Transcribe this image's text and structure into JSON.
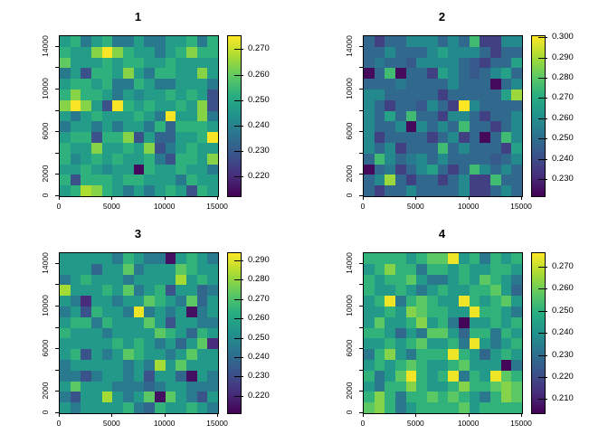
{
  "figure": {
    "background": "#ffffff",
    "foreground": "#000000"
  },
  "colormap": {
    "name": "viridis",
    "stops": [
      "#440154",
      "#472d7b",
      "#3b528b",
      "#2c728e",
      "#21918c",
      "#27ad81",
      "#5ec962",
      "#aadc32",
      "#fde725"
    ]
  },
  "chart_data": [
    {
      "type": "heatmap",
      "title": "1",
      "xlim": [
        0,
        15000
      ],
      "ylim": [
        0,
        15000
      ],
      "x_ticks": [
        0,
        5000,
        10000,
        15000
      ],
      "y_ticks": [
        0,
        2000,
        4000,
        6000,
        8000,
        10000,
        12000,
        14000
      ],
      "y_tick_labels": [
        0,
        2000,
        6000,
        10000,
        14000
      ],
      "zlim": [
        0.2125,
        0.2755
      ],
      "colorbar_ticks": [
        0.22,
        0.23,
        0.24,
        0.25,
        0.26,
        0.27
      ],
      "grid_shape": [
        15,
        15
      ],
      "row_order": "top_to_bottom",
      "values": [
        [
          0.247,
          0.253,
          0.238,
          0.247,
          0.253,
          0.238,
          0.238,
          0.247,
          0.238,
          0.238,
          0.247,
          0.247,
          0.253,
          0.238,
          0.253
        ],
        [
          0.253,
          0.247,
          0.247,
          0.264,
          0.275,
          0.264,
          0.253,
          0.247,
          0.247,
          0.238,
          0.247,
          0.253,
          0.264,
          0.253,
          0.253
        ],
        [
          0.26,
          0.247,
          0.247,
          0.247,
          0.253,
          0.247,
          0.253,
          0.253,
          0.247,
          0.247,
          0.253,
          0.247,
          0.247,
          0.247,
          0.247
        ],
        [
          0.238,
          0.247,
          0.228,
          0.253,
          0.253,
          0.247,
          0.264,
          0.247,
          0.238,
          0.253,
          0.253,
          0.247,
          0.247,
          0.264,
          0.247
        ],
        [
          0.247,
          0.253,
          0.253,
          0.247,
          0.253,
          0.238,
          0.238,
          0.253,
          0.247,
          0.238,
          0.238,
          0.247,
          0.247,
          0.247,
          0.238
        ],
        [
          0.253,
          0.264,
          0.253,
          0.253,
          0.247,
          0.238,
          0.247,
          0.242,
          0.247,
          0.247,
          0.253,
          0.247,
          0.253,
          0.247,
          0.228
        ],
        [
          0.264,
          0.275,
          0.264,
          0.247,
          0.228,
          0.275,
          0.253,
          0.247,
          0.253,
          0.247,
          0.247,
          0.253,
          0.247,
          0.264,
          0.228
        ],
        [
          0.247,
          0.238,
          0.247,
          0.253,
          0.247,
          0.247,
          0.247,
          0.253,
          0.247,
          0.238,
          0.275,
          0.247,
          0.247,
          0.264,
          0.238
        ],
        [
          0.238,
          0.247,
          0.247,
          0.238,
          0.247,
          0.238,
          0.247,
          0.247,
          0.238,
          0.253,
          0.233,
          0.253,
          0.253,
          0.253,
          0.247
        ],
        [
          0.247,
          0.253,
          0.253,
          0.228,
          0.253,
          0.253,
          0.264,
          0.228,
          0.247,
          0.233,
          0.233,
          0.247,
          0.247,
          0.253,
          0.275
        ],
        [
          0.253,
          0.247,
          0.247,
          0.264,
          0.247,
          0.247,
          0.253,
          0.247,
          0.264,
          0.228,
          0.238,
          0.247,
          0.253,
          0.247,
          0.247
        ],
        [
          0.253,
          0.242,
          0.247,
          0.253,
          0.247,
          0.253,
          0.247,
          0.247,
          0.253,
          0.238,
          0.228,
          0.253,
          0.253,
          0.247,
          0.264
        ],
        [
          0.247,
          0.247,
          0.253,
          0.247,
          0.242,
          0.247,
          0.247,
          0.214,
          0.253,
          0.247,
          0.247,
          0.253,
          0.247,
          0.247,
          0.238
        ],
        [
          0.253,
          0.228,
          0.253,
          0.253,
          0.253,
          0.247,
          0.253,
          0.253,
          0.247,
          0.247,
          0.247,
          0.238,
          0.253,
          0.247,
          0.247
        ],
        [
          0.247,
          0.253,
          0.268,
          0.264,
          0.253,
          0.247,
          0.238,
          0.247,
          0.238,
          0.247,
          0.253,
          0.247,
          0.228,
          0.253,
          0.247
        ]
      ]
    },
    {
      "type": "heatmap",
      "title": "2",
      "xlim": [
        0,
        15000
      ],
      "ylim": [
        0,
        15000
      ],
      "x_ticks": [
        0,
        5000,
        10000,
        15000
      ],
      "y_ticks": [
        0,
        2000,
        4000,
        6000,
        8000,
        10000,
        12000,
        14000
      ],
      "y_tick_labels": [
        0,
        2000,
        6000,
        10000,
        14000
      ],
      "zlim": [
        0.222,
        0.301
      ],
      "colorbar_ticks": [
        0.23,
        0.24,
        0.25,
        0.26,
        0.27,
        0.28,
        0.29,
        0.3
      ],
      "grid_shape": [
        15,
        15
      ],
      "row_order": "top_to_bottom",
      "values": [
        [
          0.249,
          0.237,
          0.249,
          0.249,
          0.259,
          0.259,
          0.259,
          0.249,
          0.259,
          0.249,
          0.276,
          0.237,
          0.237,
          0.259,
          0.259
        ],
        [
          0.249,
          0.249,
          0.259,
          0.249,
          0.249,
          0.249,
          0.259,
          0.267,
          0.259,
          0.259,
          0.259,
          0.249,
          0.237,
          0.249,
          0.249
        ],
        [
          0.249,
          0.254,
          0.249,
          0.249,
          0.244,
          0.259,
          0.259,
          0.259,
          0.259,
          0.249,
          0.244,
          0.237,
          0.249,
          0.249,
          0.267
        ],
        [
          0.224,
          0.249,
          0.276,
          0.224,
          0.249,
          0.249,
          0.237,
          0.267,
          0.259,
          0.249,
          0.244,
          0.249,
          0.259,
          0.267,
          0.249
        ],
        [
          0.249,
          0.249,
          0.249,
          0.254,
          0.249,
          0.249,
          0.249,
          0.249,
          0.259,
          0.249,
          0.249,
          0.249,
          0.224,
          0.249,
          0.259
        ],
        [
          0.259,
          0.259,
          0.249,
          0.249,
          0.249,
          0.249,
          0.249,
          0.237,
          0.249,
          0.249,
          0.249,
          0.249,
          0.249,
          0.267,
          0.289
        ],
        [
          0.259,
          0.249,
          0.237,
          0.249,
          0.249,
          0.244,
          0.259,
          0.249,
          0.237,
          0.301,
          0.259,
          0.249,
          0.249,
          0.249,
          0.249
        ],
        [
          0.259,
          0.249,
          0.267,
          0.249,
          0.276,
          0.249,
          0.249,
          0.237,
          0.259,
          0.259,
          0.249,
          0.237,
          0.249,
          0.249,
          0.259
        ],
        [
          0.259,
          0.249,
          0.249,
          0.259,
          0.224,
          0.259,
          0.249,
          0.259,
          0.249,
          0.276,
          0.249,
          0.249,
          0.237,
          0.249,
          0.259
        ],
        [
          0.259,
          0.237,
          0.249,
          0.249,
          0.249,
          0.249,
          0.237,
          0.249,
          0.259,
          0.237,
          0.249,
          0.224,
          0.249,
          0.276,
          0.259
        ],
        [
          0.259,
          0.249,
          0.259,
          0.237,
          0.249,
          0.249,
          0.249,
          0.276,
          0.249,
          0.259,
          0.249,
          0.249,
          0.249,
          0.237,
          0.267
        ],
        [
          0.249,
          0.276,
          0.259,
          0.249,
          0.254,
          0.259,
          0.249,
          0.259,
          0.249,
          0.249,
          0.249,
          0.249,
          0.244,
          0.249,
          0.259
        ],
        [
          0.224,
          0.249,
          0.254,
          0.237,
          0.249,
          0.259,
          0.267,
          0.249,
          0.237,
          0.249,
          0.276,
          0.259,
          0.249,
          0.259,
          0.249
        ],
        [
          0.249,
          0.259,
          0.289,
          0.249,
          0.237,
          0.249,
          0.249,
          0.237,
          0.249,
          0.259,
          0.237,
          0.237,
          0.276,
          0.249,
          0.249
        ],
        [
          0.249,
          0.237,
          0.249,
          0.249,
          0.259,
          0.249,
          0.249,
          0.249,
          0.249,
          0.259,
          0.237,
          0.237,
          0.249,
          0.259,
          0.249
        ]
      ]
    },
    {
      "type": "heatmap",
      "title": "3",
      "xlim": [
        0,
        15000
      ],
      "ylim": [
        0,
        15000
      ],
      "x_ticks": [
        0,
        5000,
        10000,
        15000
      ],
      "y_ticks": [
        0,
        2000,
        4000,
        6000,
        8000,
        10000,
        12000,
        14000
      ],
      "y_tick_labels": [
        0,
        2000,
        6000,
        10000,
        14000
      ],
      "zlim": [
        0.2116,
        0.294
      ],
      "colorbar_ticks": [
        0.22,
        0.23,
        0.24,
        0.25,
        0.26,
        0.27,
        0.28,
        0.29
      ],
      "grid_shape": [
        15,
        15
      ],
      "row_order": "top_to_bottom",
      "values": [
        [
          0.256,
          0.256,
          0.256,
          0.256,
          0.256,
          0.245,
          0.265,
          0.256,
          0.245,
          0.245,
          0.215,
          0.256,
          0.265,
          0.256,
          0.245
        ],
        [
          0.256,
          0.256,
          0.256,
          0.239,
          0.256,
          0.256,
          0.273,
          0.245,
          0.256,
          0.256,
          0.256,
          0.273,
          0.265,
          0.256,
          0.256
        ],
        [
          0.245,
          0.256,
          0.265,
          0.256,
          0.256,
          0.256,
          0.245,
          0.256,
          0.256,
          0.256,
          0.256,
          0.283,
          0.256,
          0.265,
          0.256
        ],
        [
          0.283,
          0.256,
          0.256,
          0.256,
          0.265,
          0.256,
          0.273,
          0.245,
          0.256,
          0.265,
          0.233,
          0.256,
          0.256,
          0.239,
          0.245
        ],
        [
          0.256,
          0.245,
          0.222,
          0.256,
          0.256,
          0.245,
          0.256,
          0.256,
          0.273,
          0.265,
          0.256,
          0.245,
          0.273,
          0.239,
          0.256
        ],
        [
          0.245,
          0.256,
          0.233,
          0.265,
          0.256,
          0.256,
          0.245,
          0.292,
          0.245,
          0.256,
          0.245,
          0.256,
          0.215,
          0.245,
          0.256
        ],
        [
          0.256,
          0.265,
          0.265,
          0.245,
          0.265,
          0.256,
          0.256,
          0.256,
          0.273,
          0.256,
          0.233,
          0.256,
          0.256,
          0.245,
          0.245
        ],
        [
          0.265,
          0.256,
          0.256,
          0.256,
          0.245,
          0.256,
          0.256,
          0.256,
          0.256,
          0.273,
          0.265,
          0.256,
          0.239,
          0.265,
          0.256
        ],
        [
          0.256,
          0.256,
          0.256,
          0.256,
          0.256,
          0.265,
          0.256,
          0.265,
          0.256,
          0.245,
          0.256,
          0.239,
          0.256,
          0.273,
          0.222
        ],
        [
          0.256,
          0.265,
          0.233,
          0.256,
          0.245,
          0.256,
          0.273,
          0.265,
          0.256,
          0.256,
          0.245,
          0.256,
          0.273,
          0.256,
          0.256
        ],
        [
          0.245,
          0.256,
          0.256,
          0.256,
          0.256,
          0.256,
          0.245,
          0.256,
          0.245,
          0.283,
          0.256,
          0.273,
          0.256,
          0.256,
          0.256
        ],
        [
          0.245,
          0.245,
          0.233,
          0.245,
          0.256,
          0.256,
          0.245,
          0.256,
          0.233,
          0.256,
          0.256,
          0.239,
          0.215,
          0.256,
          0.245
        ],
        [
          0.256,
          0.273,
          0.256,
          0.256,
          0.256,
          0.245,
          0.245,
          0.245,
          0.239,
          0.245,
          0.256,
          0.256,
          0.245,
          0.245,
          0.245
        ],
        [
          0.245,
          0.233,
          0.256,
          0.256,
          0.283,
          0.256,
          0.245,
          0.256,
          0.273,
          0.215,
          0.273,
          0.256,
          0.245,
          0.233,
          0.256
        ],
        [
          0.256,
          0.245,
          0.256,
          0.256,
          0.256,
          0.256,
          0.265,
          0.245,
          0.239,
          0.265,
          0.256,
          0.256,
          0.265,
          0.256,
          0.245
        ]
      ]
    },
    {
      "type": "heatmap",
      "title": "4",
      "xlim": [
        0,
        15000
      ],
      "ylim": [
        0,
        15000
      ],
      "x_ticks": [
        0,
        5000,
        10000,
        15000
      ],
      "y_ticks": [
        0,
        2000,
        4000,
        6000,
        8000,
        10000,
        12000,
        14000
      ],
      "y_tick_labels": [
        0,
        2000,
        6000,
        10000,
        14000
      ],
      "zlim": [
        0.204,
        0.2765
      ],
      "colorbar_ticks": [
        0.21,
        0.22,
        0.23,
        0.24,
        0.25,
        0.26,
        0.27
      ],
      "grid_shape": [
        15,
        15
      ],
      "row_order": "top_to_bottom",
      "values": [
        [
          0.251,
          0.251,
          0.251,
          0.251,
          0.243,
          0.251,
          0.258,
          0.258,
          0.275,
          0.243,
          0.251,
          0.233,
          0.251,
          0.243,
          0.251
        ],
        [
          0.243,
          0.251,
          0.263,
          0.251,
          0.251,
          0.233,
          0.251,
          0.251,
          0.243,
          0.251,
          0.243,
          0.243,
          0.251,
          0.251,
          0.243
        ],
        [
          0.251,
          0.243,
          0.251,
          0.251,
          0.258,
          0.243,
          0.233,
          0.233,
          0.243,
          0.251,
          0.243,
          0.258,
          0.251,
          0.243,
          0.233
        ],
        [
          0.251,
          0.243,
          0.243,
          0.251,
          0.243,
          0.233,
          0.243,
          0.251,
          0.243,
          0.243,
          0.251,
          0.251,
          0.258,
          0.243,
          0.228
        ],
        [
          0.243,
          0.251,
          0.275,
          0.233,
          0.251,
          0.258,
          0.251,
          0.243,
          0.243,
          0.275,
          0.251,
          0.243,
          0.251,
          0.258,
          0.243
        ],
        [
          0.243,
          0.243,
          0.251,
          0.243,
          0.263,
          0.258,
          0.251,
          0.251,
          0.243,
          0.243,
          0.275,
          0.251,
          0.251,
          0.243,
          0.233
        ],
        [
          0.243,
          0.258,
          0.243,
          0.243,
          0.251,
          0.263,
          0.243,
          0.251,
          0.233,
          0.205,
          0.243,
          0.243,
          0.251,
          0.243,
          0.251
        ],
        [
          0.251,
          0.251,
          0.243,
          0.228,
          0.243,
          0.233,
          0.258,
          0.258,
          0.243,
          0.228,
          0.251,
          0.251,
          0.233,
          0.251,
          0.243
        ],
        [
          0.243,
          0.243,
          0.251,
          0.243,
          0.251,
          0.258,
          0.243,
          0.243,
          0.251,
          0.233,
          0.275,
          0.243,
          0.233,
          0.243,
          0.251
        ],
        [
          0.233,
          0.251,
          0.263,
          0.243,
          0.233,
          0.251,
          0.251,
          0.251,
          0.275,
          0.251,
          0.243,
          0.228,
          0.243,
          0.251,
          0.243
        ],
        [
          0.243,
          0.251,
          0.243,
          0.251,
          0.258,
          0.251,
          0.243,
          0.243,
          0.251,
          0.258,
          0.243,
          0.243,
          0.243,
          0.205,
          0.233
        ],
        [
          0.251,
          0.233,
          0.243,
          0.258,
          0.275,
          0.251,
          0.243,
          0.251,
          0.275,
          0.233,
          0.251,
          0.243,
          0.275,
          0.258,
          0.251
        ],
        [
          0.243,
          0.233,
          0.251,
          0.251,
          0.263,
          0.251,
          0.243,
          0.243,
          0.251,
          0.263,
          0.251,
          0.251,
          0.258,
          0.263,
          0.258
        ],
        [
          0.251,
          0.263,
          0.251,
          0.233,
          0.251,
          0.251,
          0.258,
          0.251,
          0.258,
          0.251,
          0.243,
          0.233,
          0.251,
          0.263,
          0.258
        ],
        [
          0.258,
          0.263,
          0.251,
          0.233,
          0.243,
          0.251,
          0.251,
          0.251,
          0.251,
          0.258,
          0.243,
          0.251,
          0.251,
          0.251,
          0.251
        ]
      ]
    }
  ]
}
